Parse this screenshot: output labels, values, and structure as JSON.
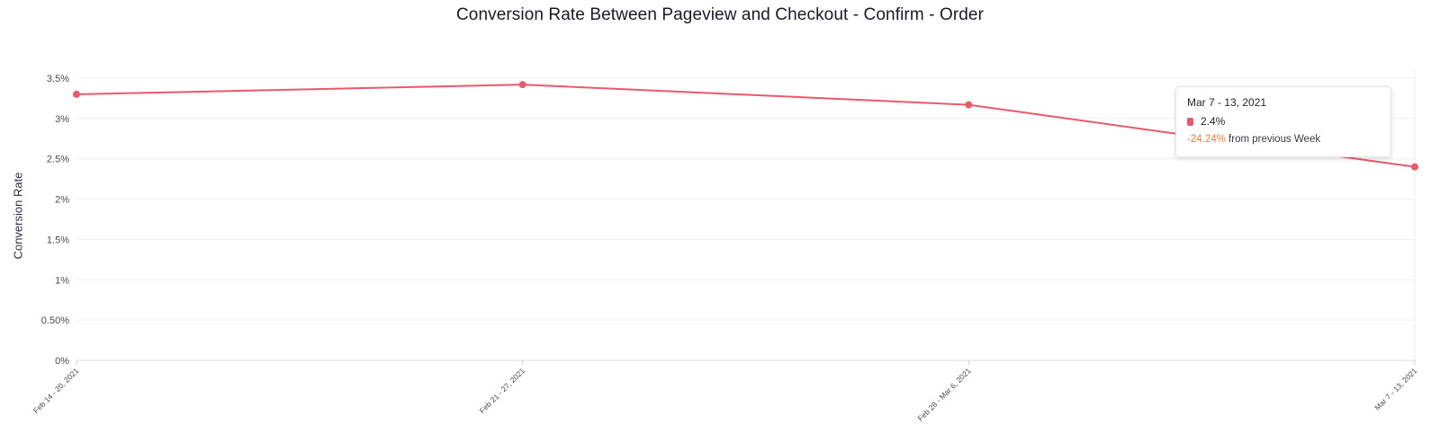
{
  "chart_data": {
    "type": "line",
    "title": "Conversion Rate Between Pageview and Checkout - Confirm - Order",
    "xlabel": "",
    "ylabel": "Conversion Rate",
    "categories": [
      "Feb 14 - 20, 2021",
      "Feb 21 - 27, 2021",
      "Feb 28 - Mar 6, 2021",
      "Mar 7 - 13, 2021"
    ],
    "series": [
      {
        "values": [
          3.3,
          3.42,
          3.17,
          2.4
        ],
        "color": "#e8596b"
      }
    ],
    "ylim": [
      0,
      3.6
    ],
    "yticks": [
      {
        "value": 0,
        "label": "0%"
      },
      {
        "value": 0.5,
        "label": "0.50%"
      },
      {
        "value": 1,
        "label": "1%"
      },
      {
        "value": 1.5,
        "label": "1.5%"
      },
      {
        "value": 2,
        "label": "2%"
      },
      {
        "value": 2.5,
        "label": "2.5%"
      },
      {
        "value": 3,
        "label": "3%"
      },
      {
        "value": 3.5,
        "label": "3.5%"
      }
    ],
    "grid": true,
    "legend": "none"
  },
  "tooltip": {
    "date": "Mar 7 - 13, 2021",
    "value": "2.4%",
    "change_pct": "-24.24%",
    "change_text": "from previous Week",
    "accent_color": "#f07a2a"
  }
}
